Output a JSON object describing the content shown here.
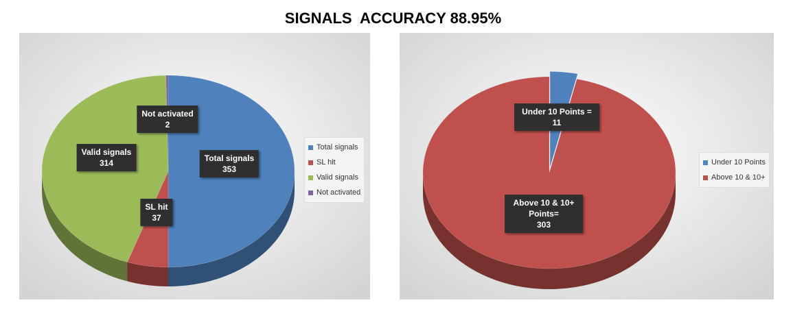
{
  "title": "SIGNALS  ACCURACY 88.95%",
  "chart_data": [
    {
      "type": "pie",
      "categories": [
        "Total signals",
        "SL hit",
        "Valid signals",
        "Not activated"
      ],
      "values": [
        353,
        37,
        314,
        2
      ],
      "colors": [
        "#4f81bd",
        "#c0504d",
        "#9bbb59",
        "#8064a2"
      ],
      "legend": "right"
    },
    {
      "type": "pie",
      "categories": [
        "Under 10 Points",
        "Above 10 & 10+"
      ],
      "label_names": [
        "Under 10 Points =",
        "Above 10 & 10+ Points="
      ],
      "values": [
        11,
        303
      ],
      "colors": [
        "#4f81bd",
        "#c0504d"
      ],
      "legend": "right"
    }
  ]
}
